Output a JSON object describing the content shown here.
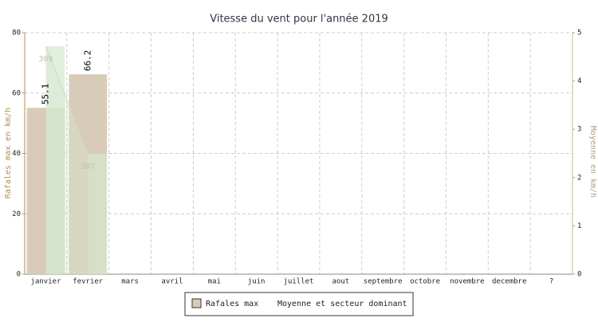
{
  "chart_data": {
    "type": "bar",
    "title": "Vitesse du vent pour l'année 2019",
    "y_label": "Rafales max en km/h",
    "y2_label": "Moyenne en km/h",
    "categories": [
      "janvier",
      "fevrier",
      "mars",
      "avril",
      "mai",
      "juin",
      "juillet",
      "aout",
      "septembre",
      "octobre",
      "novembre",
      "decembre",
      "?"
    ],
    "series": [
      {
        "name": "Rafales max",
        "color": "#d8cbb8",
        "values": [
          55.1,
          66.2,
          null,
          null,
          null,
          null,
          null,
          null,
          null,
          null,
          null,
          null,
          null
        ]
      },
      {
        "name": "Moyenne et secteur dominant",
        "color": "#d6e8d0",
        "axis": "y2",
        "values": [
          4.72,
          2.49,
          null,
          null,
          null,
          null,
          null,
          null,
          null,
          null,
          null,
          null,
          null
        ],
        "sector_labels": [
          309,
          307,
          null,
          null,
          null,
          null,
          null,
          null,
          null,
          null,
          null,
          null,
          null
        ]
      }
    ],
    "ylim": [
      0,
      80
    ],
    "yticks": [
      0,
      20,
      40,
      60,
      80
    ],
    "y2lim": [
      0,
      5
    ],
    "y2ticks": [
      0,
      1,
      2,
      3,
      4,
      5
    ],
    "grid": true
  }
}
